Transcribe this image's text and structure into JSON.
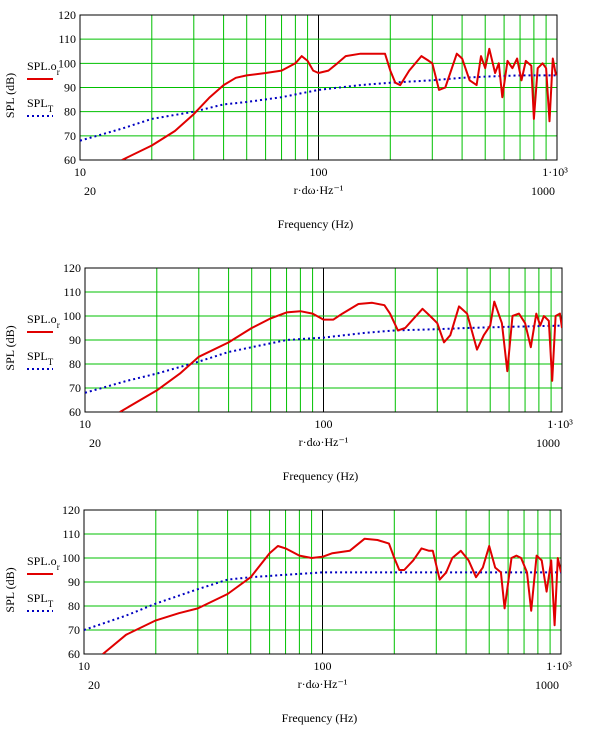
{
  "colors": {
    "grid": "#00c000",
    "measured": "#e00000",
    "target": "#0000c0",
    "axis": "#000000",
    "background": "#ffffff"
  },
  "chart_data": [
    {
      "type": "line",
      "xscale": "log",
      "xlim": [
        10,
        1000
      ],
      "ylim": [
        60,
        120
      ],
      "xticks": [
        "10",
        "100",
        "1·10³"
      ],
      "xticks_secondary": [
        "20",
        "1000"
      ],
      "yticks": [
        "60",
        "70",
        "80",
        "90",
        "100",
        "110",
        "120"
      ],
      "xlabel_expr": "r·dω·Hz⁻¹",
      "xlabel": "Frequency (Hz)",
      "ylabel": "SPL (dB)",
      "legend": [
        "SPL.o_r",
        "SPL_T"
      ],
      "grid": true,
      "series": [
        {
          "name": "SPL.o_r",
          "style": "solid",
          "color": "#e00000",
          "points": [
            [
              15,
              60
            ],
            [
              20,
              66
            ],
            [
              25,
              72
            ],
            [
              30,
              79
            ],
            [
              35,
              86
            ],
            [
              40,
              91
            ],
            [
              45,
              94
            ],
            [
              50,
              95
            ],
            [
              60,
              96
            ],
            [
              70,
              97
            ],
            [
              80,
              100
            ],
            [
              85,
              103
            ],
            [
              90,
              101
            ],
            [
              95,
              97
            ],
            [
              100,
              96
            ],
            [
              110,
              97
            ],
            [
              120,
              100
            ],
            [
              130,
              103
            ],
            [
              150,
              104
            ],
            [
              175,
              104
            ],
            [
              190,
              104
            ],
            [
              200,
              97
            ],
            [
              210,
              92
            ],
            [
              220,
              91
            ],
            [
              240,
              97
            ],
            [
              270,
              103
            ],
            [
              290,
              101
            ],
            [
              300,
              100
            ],
            [
              320,
              89
            ],
            [
              340,
              90
            ],
            [
              380,
              104
            ],
            [
              400,
              102
            ],
            [
              430,
              93
            ],
            [
              460,
              91
            ],
            [
              480,
              103
            ],
            [
              500,
              98
            ],
            [
              520,
              106
            ],
            [
              550,
              96
            ],
            [
              570,
              100
            ],
            [
              590,
              86
            ],
            [
              620,
              101
            ],
            [
              650,
              98
            ],
            [
              680,
              102
            ],
            [
              710,
              93
            ],
            [
              740,
              101
            ],
            [
              780,
              99
            ],
            [
              800,
              77
            ],
            [
              830,
              98
            ],
            [
              870,
              100
            ],
            [
              900,
              98
            ],
            [
              930,
              76
            ],
            [
              960,
              102
            ],
            [
              990,
              95
            ]
          ]
        },
        {
          "name": "SPL_T",
          "style": "dotted",
          "color": "#0000c0",
          "points": [
            [
              10,
              68
            ],
            [
              15,
              73
            ],
            [
              20,
              77
            ],
            [
              30,
              80
            ],
            [
              40,
              83
            ],
            [
              50,
              84
            ],
            [
              70,
              86
            ],
            [
              100,
              89
            ],
            [
              150,
              91
            ],
            [
              200,
              92
            ],
            [
              300,
              93
            ],
            [
              400,
              94
            ],
            [
              500,
              94.5
            ],
            [
              700,
              95
            ],
            [
              1000,
              95
            ]
          ]
        }
      ]
    },
    {
      "type": "line",
      "xscale": "log",
      "xlim": [
        10,
        1000
      ],
      "ylim": [
        60,
        120
      ],
      "xticks": [
        "10",
        "100",
        "1·10³"
      ],
      "xticks_secondary": [
        "20",
        "1000"
      ],
      "yticks": [
        "60",
        "70",
        "80",
        "90",
        "100",
        "110",
        "120"
      ],
      "xlabel_expr": "r·dω·Hz⁻¹",
      "xlabel": "Frequency (Hz)",
      "ylabel": "SPL (dB)",
      "legend": [
        "SPL.o_r",
        "SPL_T"
      ],
      "grid": true,
      "series": [
        {
          "name": "SPL.o_r",
          "style": "solid",
          "color": "#e00000",
          "points": [
            [
              14,
              60
            ],
            [
              20,
              69
            ],
            [
              25,
              76
            ],
            [
              30,
              83
            ],
            [
              40,
              89
            ],
            [
              50,
              95
            ],
            [
              60,
              99
            ],
            [
              70,
              101.5
            ],
            [
              80,
              102
            ],
            [
              90,
              101
            ],
            [
              100,
              98.5
            ],
            [
              110,
              98.5
            ],
            [
              120,
              101
            ],
            [
              140,
              105
            ],
            [
              160,
              105.5
            ],
            [
              180,
              104.5
            ],
            [
              190,
              101
            ],
            [
              205,
              94
            ],
            [
              220,
              95
            ],
            [
              260,
              103
            ],
            [
              280,
              100
            ],
            [
              300,
              97
            ],
            [
              320,
              89
            ],
            [
              340,
              92
            ],
            [
              370,
              104
            ],
            [
              400,
              101
            ],
            [
              440,
              86
            ],
            [
              470,
              92
            ],
            [
              500,
              96
            ],
            [
              520,
              106
            ],
            [
              560,
              97
            ],
            [
              590,
              77
            ],
            [
              620,
              100
            ],
            [
              660,
              101
            ],
            [
              700,
              97
            ],
            [
              740,
              87
            ],
            [
              780,
              101
            ],
            [
              810,
              96
            ],
            [
              840,
              100
            ],
            [
              880,
              98
            ],
            [
              910,
              73
            ],
            [
              940,
              100
            ],
            [
              980,
              101
            ],
            [
              1000,
              95
            ]
          ]
        },
        {
          "name": "SPL_T",
          "style": "dotted",
          "color": "#0000c0",
          "points": [
            [
              10,
              68
            ],
            [
              15,
              73
            ],
            [
              20,
              76
            ],
            [
              30,
              81
            ],
            [
              40,
              85
            ],
            [
              50,
              87
            ],
            [
              70,
              90
            ],
            [
              100,
              91
            ],
            [
              150,
              93
            ],
            [
              200,
              94
            ],
            [
              300,
              94.5
            ],
            [
              400,
              95
            ],
            [
              600,
              95.5
            ],
            [
              1000,
              96
            ]
          ]
        }
      ]
    },
    {
      "type": "line",
      "xscale": "log",
      "xlim": [
        10,
        1000
      ],
      "ylim": [
        60,
        120
      ],
      "xticks": [
        "10",
        "100",
        "1·10³"
      ],
      "xticks_secondary": [
        "20",
        "1000"
      ],
      "yticks": [
        "60",
        "70",
        "80",
        "90",
        "100",
        "110",
        "120"
      ],
      "xlabel_expr": "r·dω·Hz⁻¹",
      "xlabel": "Frequency (Hz)",
      "ylabel": "SPL (dB)",
      "legend": [
        "SPL.o_r",
        "SPL_T"
      ],
      "grid": true,
      "series": [
        {
          "name": "SPL.o_r",
          "style": "solid",
          "color": "#e00000",
          "points": [
            [
              12,
              60
            ],
            [
              15,
              68
            ],
            [
              20,
              74
            ],
            [
              25,
              77
            ],
            [
              30,
              79
            ],
            [
              40,
              85
            ],
            [
              50,
              92
            ],
            [
              60,
              102
            ],
            [
              65,
              105
            ],
            [
              70,
              104
            ],
            [
              80,
              101
            ],
            [
              90,
              100
            ],
            [
              100,
              100.5
            ],
            [
              110,
              102
            ],
            [
              130,
              103
            ],
            [
              150,
              108
            ],
            [
              170,
              107.5
            ],
            [
              190,
              106
            ],
            [
              200,
              100
            ],
            [
              210,
              95
            ],
            [
              220,
              95
            ],
            [
              240,
              99
            ],
            [
              260,
              104
            ],
            [
              280,
              103
            ],
            [
              290,
              103
            ],
            [
              310,
              91
            ],
            [
              330,
              94
            ],
            [
              350,
              100
            ],
            [
              380,
              103
            ],
            [
              410,
              99
            ],
            [
              440,
              92
            ],
            [
              470,
              96
            ],
            [
              500,
              105
            ],
            [
              530,
              96
            ],
            [
              560,
              94
            ],
            [
              580,
              79
            ],
            [
              620,
              100
            ],
            [
              650,
              101
            ],
            [
              680,
              100
            ],
            [
              720,
              94
            ],
            [
              750,
              78
            ],
            [
              790,
              101
            ],
            [
              830,
              99
            ],
            [
              870,
              86
            ],
            [
              910,
              99
            ],
            [
              940,
              72
            ],
            [
              970,
              100
            ],
            [
              1000,
              94
            ]
          ]
        },
        {
          "name": "SPL_T",
          "style": "dotted",
          "color": "#0000c0",
          "points": [
            [
              10,
              70
            ],
            [
              15,
              76
            ],
            [
              20,
              81
            ],
            [
              30,
              87
            ],
            [
              40,
              91
            ],
            [
              50,
              92
            ],
            [
              70,
              93
            ],
            [
              100,
              94
            ],
            [
              200,
              94
            ],
            [
              400,
              94
            ],
            [
              1000,
              94
            ]
          ]
        }
      ]
    }
  ]
}
